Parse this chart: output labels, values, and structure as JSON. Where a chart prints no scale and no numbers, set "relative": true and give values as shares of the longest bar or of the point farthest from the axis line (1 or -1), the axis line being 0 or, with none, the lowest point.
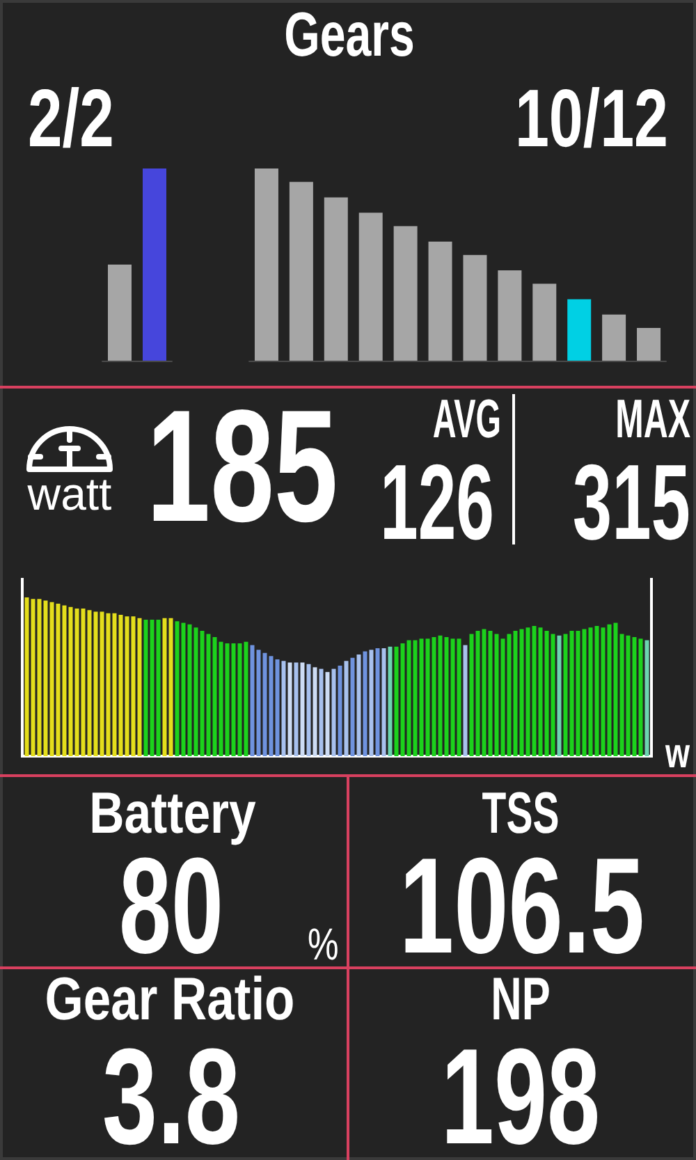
{
  "chart_data": [
    {
      "type": "bar",
      "categories": [
        null,
        null
      ],
      "values": [
        0.5,
        1
      ],
      "colors": [
        "#a6a6a6",
        "#4646dc"
      ],
      "relative": true,
      "annotations": [
        "2/2"
      ]
    },
    {
      "type": "bar",
      "title": "Gears",
      "categories": [
        null,
        null,
        null,
        null,
        null,
        null,
        null,
        null,
        null,
        null,
        null,
        null
      ],
      "values": [
        1,
        0.93,
        0.85,
        0.77,
        0.7,
        0.62,
        0.55,
        0.47,
        0.4,
        0.32,
        0.24,
        0.17
      ],
      "colors": [
        "#a6a6a6",
        "#a6a6a6",
        "#a6a6a6",
        "#a6a6a6",
        "#a6a6a6",
        "#a6a6a6",
        "#a6a6a6",
        "#a6a6a6",
        "#a6a6a6",
        "#00d0e4",
        "#a6a6a6",
        "#a6a6a6"
      ],
      "relative": true,
      "annotations": [
        "10/12"
      ]
    },
    {
      "type": "other",
      "annotations": [
        "watt",
        "185",
        "AVG",
        "126",
        "MAX",
        "315"
      ]
    },
    {
      "type": "bar",
      "categories": [
        null,
        null,
        null,
        null,
        null,
        null,
        null,
        null,
        null,
        null,
        null,
        null,
        null,
        null,
        null,
        null,
        null,
        null,
        null,
        null,
        null,
        null,
        null,
        null,
        null,
        null,
        null,
        null,
        null,
        null,
        null,
        null,
        null,
        null,
        null,
        null,
        null,
        null,
        null,
        null,
        null,
        null,
        null,
        null,
        null,
        null,
        null,
        null,
        null,
        null,
        null,
        null,
        null,
        null,
        null,
        null,
        null,
        null,
        null,
        null,
        null,
        null,
        null,
        null,
        null,
        null,
        null,
        null,
        null,
        null,
        null,
        null,
        null,
        null,
        null,
        null,
        null,
        null,
        null,
        null,
        null,
        null,
        null,
        null,
        null,
        null,
        null,
        null,
        null,
        null,
        null,
        null,
        null,
        null,
        null,
        null,
        null,
        null,
        null,
        null
      ],
      "values": [
        1,
        0.99,
        0.99,
        0.98,
        0.97,
        0.96,
        0.95,
        0.94,
        0.93,
        0.93,
        0.92,
        0.91,
        0.91,
        0.9,
        0.9,
        0.89,
        0.88,
        0.88,
        0.87,
        0.86,
        0.86,
        0.86,
        0.87,
        0.87,
        0.85,
        0.84,
        0.83,
        0.81,
        0.79,
        0.77,
        0.75,
        0.72,
        0.71,
        0.71,
        0.71,
        0.72,
        0.7,
        0.67,
        0.65,
        0.63,
        0.61,
        0.6,
        0.59,
        0.59,
        0.59,
        0.58,
        0.56,
        0.55,
        0.53,
        0.55,
        0.57,
        0.6,
        0.62,
        0.64,
        0.66,
        0.67,
        0.68,
        0.68,
        0.69,
        0.69,
        0.71,
        0.73,
        0.73,
        0.74,
        0.74,
        0.75,
        0.76,
        0.75,
        0.74,
        0.74,
        0.7,
        0.77,
        0.79,
        0.8,
        0.79,
        0.77,
        0.74,
        0.77,
        0.79,
        0.8,
        0.81,
        0.82,
        0.81,
        0.79,
        0.77,
        0.76,
        0.77,
        0.79,
        0.79,
        0.8,
        0.81,
        0.82,
        0.81,
        0.83,
        0.84,
        0.77,
        0.76,
        0.75,
        0.74,
        0.73
      ],
      "colors": [
        "#e4de1c",
        "#e4de1c",
        "#e4de1c",
        "#e4de1c",
        "#e4de1c",
        "#e4de1c",
        "#e4de1c",
        "#e4de1c",
        "#e4de1c",
        "#e4de1c",
        "#e4de1c",
        "#e4de1c",
        "#e4de1c",
        "#e4de1c",
        "#e4de1c",
        "#e4de1c",
        "#e4de1c",
        "#e4de1c",
        "#e4de1c",
        "#1cd21c",
        "#1cd21c",
        "#1cd21c",
        "#e4de1c",
        "#e4de1c",
        "#1cd21c",
        "#1cd21c",
        "#1cd21c",
        "#1cd21c",
        "#1cd21c",
        "#1cd21c",
        "#1cd21c",
        "#1cd21c",
        "#1cd21c",
        "#1cd21c",
        "#1cd21c",
        "#1cd21c",
        "#6f93df",
        "#6f93df",
        "#6f93df",
        "#6f93df",
        "#6f93df",
        "#a8c1ee",
        "#cddcf4",
        "#a8c1ee",
        "#cddcf4",
        "#a8c1ee",
        "#cddcf4",
        "#a8c1ee",
        "#cddcf4",
        "#a8c1ee",
        "#6f93df",
        "#a8c1ee",
        "#6f93df",
        "#a8c1ee",
        "#6f93df",
        "#a8c1ee",
        "#6f93df",
        "#a8c1ee",
        "#6cd5b0",
        "#1cd21c",
        "#1cd21c",
        "#1cd21c",
        "#1cd21c",
        "#1cd21c",
        "#1cd21c",
        "#1cd21c",
        "#1cd21c",
        "#1cd21c",
        "#1cd21c",
        "#1cd21c",
        "#a8c1ee",
        "#1cd21c",
        "#1cd21c",
        "#1cd21c",
        "#1cd21c",
        "#1cd21c",
        "#1cd21c",
        "#1cd21c",
        "#1cd21c",
        "#1cd21c",
        "#1cd21c",
        "#1cd21c",
        "#1cd21c",
        "#1cd21c",
        "#1cd21c",
        "#6cd5b0",
        "#1cd21c",
        "#1cd21c",
        "#1cd21c",
        "#1cd21c",
        "#1cd21c",
        "#1cd21c",
        "#1cd21c",
        "#1cd21c",
        "#1cd21c",
        "#1cd21c",
        "#1cd21c",
        "#1cd21c",
        "#1cd21c",
        "#6cd5b0"
      ],
      "relative": true,
      "ylabel": "w"
    },
    {
      "type": "other",
      "title": "Battery",
      "annotations": [
        "80",
        "%"
      ]
    },
    {
      "type": "other",
      "title": "TSS",
      "annotations": [
        "106.5"
      ]
    },
    {
      "type": "other",
      "title": "Gear Ratio",
      "annotations": [
        "3.8"
      ]
    },
    {
      "type": "other",
      "title": "NP",
      "annotations": [
        "198"
      ]
    }
  ]
}
